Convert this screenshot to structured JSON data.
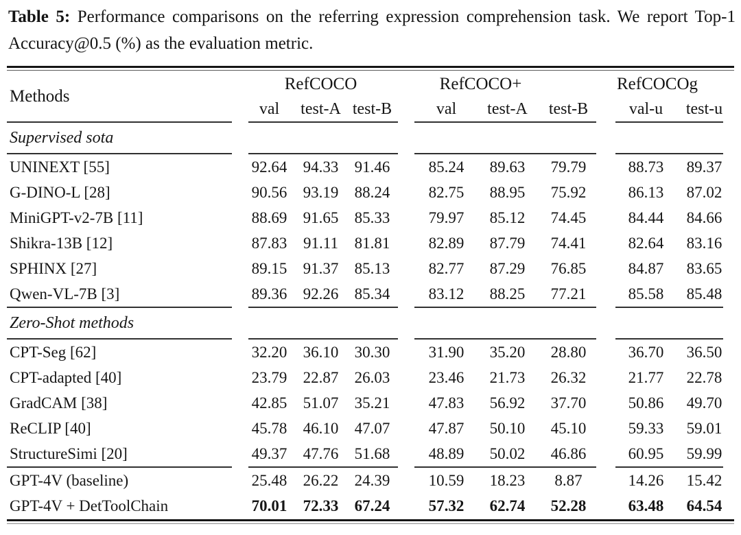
{
  "caption": {
    "label": "Table 5:",
    "text": "Performance comparisons on the referring expression comprehension task. We report Top-1 Accuracy@0.5 (%) as the evaluation metric."
  },
  "header": {
    "methods": "Methods",
    "groups": [
      {
        "name": "RefCOCO",
        "subcols": [
          "val",
          "test-A",
          "test-B"
        ]
      },
      {
        "name": "RefCOCO+",
        "subcols": [
          "val",
          "test-A",
          "test-B"
        ]
      },
      {
        "name": "RefCOCOg",
        "subcols": [
          "val-u",
          "test-u"
        ]
      }
    ]
  },
  "sections": [
    {
      "title": "Supervised sota",
      "rows": [
        {
          "method": "UNINEXT  [55]",
          "values": [
            "92.64",
            "94.33",
            "91.46",
            "85.24",
            "89.63",
            "79.79",
            "88.73",
            "89.37"
          ],
          "bold": false
        },
        {
          "method": "G-DINO-L  [28]",
          "values": [
            "90.56",
            "93.19",
            "88.24",
            "82.75",
            "88.95",
            "75.92",
            "86.13",
            "87.02"
          ],
          "bold": false
        },
        {
          "method": "MiniGPT-v2-7B [11]",
          "values": [
            "88.69",
            "91.65",
            "85.33",
            "79.97",
            "85.12",
            "74.45",
            "84.44",
            "84.66"
          ],
          "bold": false
        },
        {
          "method": "Shikra-13B [12]",
          "values": [
            "87.83",
            "91.11",
            "81.81",
            "82.89",
            "87.79",
            "74.41",
            "82.64",
            "83.16"
          ],
          "bold": false
        },
        {
          "method": "SPHINX [27]",
          "values": [
            "89.15",
            "91.37",
            "85.13",
            "82.77",
            "87.29",
            "76.85",
            "84.87",
            "83.65"
          ],
          "bold": false
        },
        {
          "method": "Qwen-VL-7B [3]",
          "values": [
            "89.36",
            "92.26",
            "85.34",
            "83.12",
            "88.25",
            "77.21",
            "85.58",
            "85.48"
          ],
          "bold": false
        }
      ]
    },
    {
      "title": "Zero-Shot methods",
      "rows": [
        {
          "method": "CPT-Seg [62]",
          "values": [
            "32.20",
            "36.10",
            "30.30",
            "31.90",
            "35.20",
            "28.80",
            "36.70",
            "36.50"
          ],
          "bold": false
        },
        {
          "method": "CPT-adapted [40]",
          "values": [
            "23.79",
            "22.87",
            "26.03",
            "23.46",
            "21.73",
            "26.32",
            "21.77",
            "22.78"
          ],
          "bold": false
        },
        {
          "method": "GradCAM [38]",
          "values": [
            "42.85",
            "51.07",
            "35.21",
            "47.83",
            "56.92",
            "37.70",
            "50.86",
            "49.70"
          ],
          "bold": false
        },
        {
          "method": "ReCLIP [40]",
          "values": [
            "45.78",
            "46.10",
            "47.07",
            "47.87",
            "50.10",
            "45.10",
            "59.33",
            "59.01"
          ],
          "bold": false
        },
        {
          "method": "StructureSimi [20]",
          "values": [
            "49.37",
            "47.76",
            "51.68",
            "48.89",
            "50.02",
            "46.86",
            "60.95",
            "59.99"
          ],
          "bold": false
        }
      ]
    }
  ],
  "footer_rows": [
    {
      "method": "GPT-4V (baseline)",
      "values": [
        "25.48",
        "26.22",
        "24.39",
        "10.59",
        "18.23",
        "8.87",
        "14.26",
        "15.42"
      ],
      "bold": false
    },
    {
      "method": "GPT-4V + DetToolChain",
      "values": [
        "70.01",
        "72.33",
        "67.24",
        "57.32",
        "62.74",
        "52.28",
        "63.48",
        "64.54"
      ],
      "bold": true
    }
  ]
}
